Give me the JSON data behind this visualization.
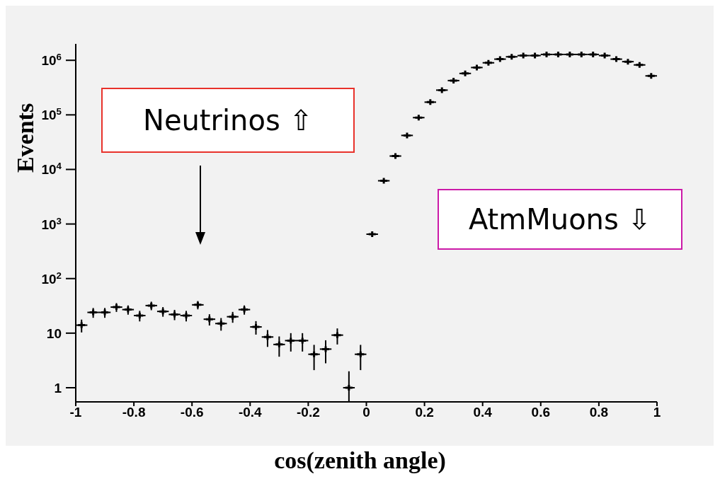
{
  "chart_data": {
    "type": "scatter",
    "xlabel": "cos(zenith angle)",
    "ylabel": "Events",
    "log": "y",
    "xlim": [
      -1,
      1
    ],
    "xticks": [
      -1,
      -0.8,
      -0.6,
      -0.4,
      -0.2,
      0,
      0.2,
      0.4,
      0.6,
      0.8,
      1
    ],
    "ylim": [
      0.55,
      2000000
    ],
    "yticks": [
      1,
      10,
      {
        "value": 100,
        "label": "10$^{2}$"
      },
      {
        "value": 1000,
        "label": "10$^{3}$"
      },
      {
        "value": 10000,
        "label": "10$^{4}$"
      },
      {
        "value": 100000,
        "label": "10$^{5}$"
      },
      {
        "value": 1000000,
        "label": "10$^{6}$"
      }
    ],
    "grid": false,
    "legend": false,
    "marker": "cross",
    "annotations": [
      "Neutrinos ⇧",
      "AtmMuons ⇩"
    ],
    "series": [
      {
        "color": "#000000",
        "x": [
          -0.98,
          -0.94,
          -0.9,
          -0.86,
          -0.82,
          -0.78,
          -0.74,
          -0.7,
          -0.66,
          -0.62,
          -0.58,
          -0.54,
          -0.5,
          -0.46,
          -0.42,
          -0.38,
          -0.34,
          -0.3,
          -0.26,
          -0.22,
          -0.18,
          -0.14,
          -0.1,
          -0.06,
          -0.02
        ],
        "values": [
          14,
          24,
          24,
          30,
          27,
          21,
          32,
          25,
          22,
          21,
          33,
          18,
          15,
          20,
          27,
          13,
          8.5,
          6.2,
          7.3,
          7.3,
          4.1,
          5.1,
          9.2,
          1,
          4.1
        ],
        "errors": [
          [
            10.3,
            17.7
          ],
          [
            19.1,
            28.9
          ],
          [
            19.1,
            28.9
          ],
          [
            24.5,
            35.5
          ],
          [
            21.8,
            32.2
          ],
          [
            16.4,
            25.6
          ],
          [
            26.3,
            37.7
          ],
          [
            20,
            30
          ],
          [
            17.3,
            26.7
          ],
          [
            16.4,
            25.6
          ],
          [
            27.3,
            38.7
          ],
          [
            13.8,
            22.2
          ],
          [
            11.1,
            18.9
          ],
          [
            15.5,
            24.5
          ],
          [
            21.8,
            32.2
          ],
          [
            9.4,
            16.6
          ],
          [
            5.6,
            11.4
          ],
          [
            3.7,
            8.7
          ],
          [
            4.6,
            10
          ],
          [
            4.6,
            10
          ],
          [
            2.1,
            6.1
          ],
          [
            2.8,
            7.4
          ],
          [
            6.2,
            12.2
          ],
          [
            0.55,
            2
          ],
          [
            2.1,
            6.1
          ]
        ],
        "xerrors": [
          0.02,
          0.02,
          0.02,
          0.02,
          0.02,
          0.02,
          0.02,
          0.02,
          0.02,
          0.02,
          0.02,
          0.02,
          0.02,
          0.02,
          0.02,
          0.02,
          0.02,
          0.02,
          0.02,
          0.02,
          0.02,
          0.02,
          0.02,
          0.02,
          0.02
        ]
      },
      {
        "color": "#000000",
        "x": [
          0.02,
          0.06,
          0.1,
          0.14,
          0.18,
          0.22,
          0.26,
          0.3,
          0.34,
          0.38,
          0.42,
          0.46,
          0.5,
          0.54,
          0.58,
          0.62,
          0.66,
          0.7,
          0.74,
          0.78,
          0.82,
          0.86,
          0.9,
          0.94,
          0.98
        ],
        "values": [
          650,
          6200,
          17600,
          42000,
          89000,
          171000,
          284000,
          425000,
          574000,
          737000,
          900000,
          1050000,
          1160000,
          1220000,
          1220000,
          1280000,
          1280000,
          1280000,
          1280000,
          1280000,
          1220000,
          1050000,
          944000,
          823000,
          518000
        ],
        "xerrors": [
          0.02,
          0.02,
          0.02,
          0.02,
          0.02,
          0.02,
          0.02,
          0.02,
          0.02,
          0.02,
          0.02,
          0.02,
          0.02,
          0.02,
          0.02,
          0.02,
          0.02,
          0.02,
          0.02,
          0.02,
          0.02,
          0.02,
          0.02,
          0.02,
          0.02
        ]
      }
    ]
  }
}
